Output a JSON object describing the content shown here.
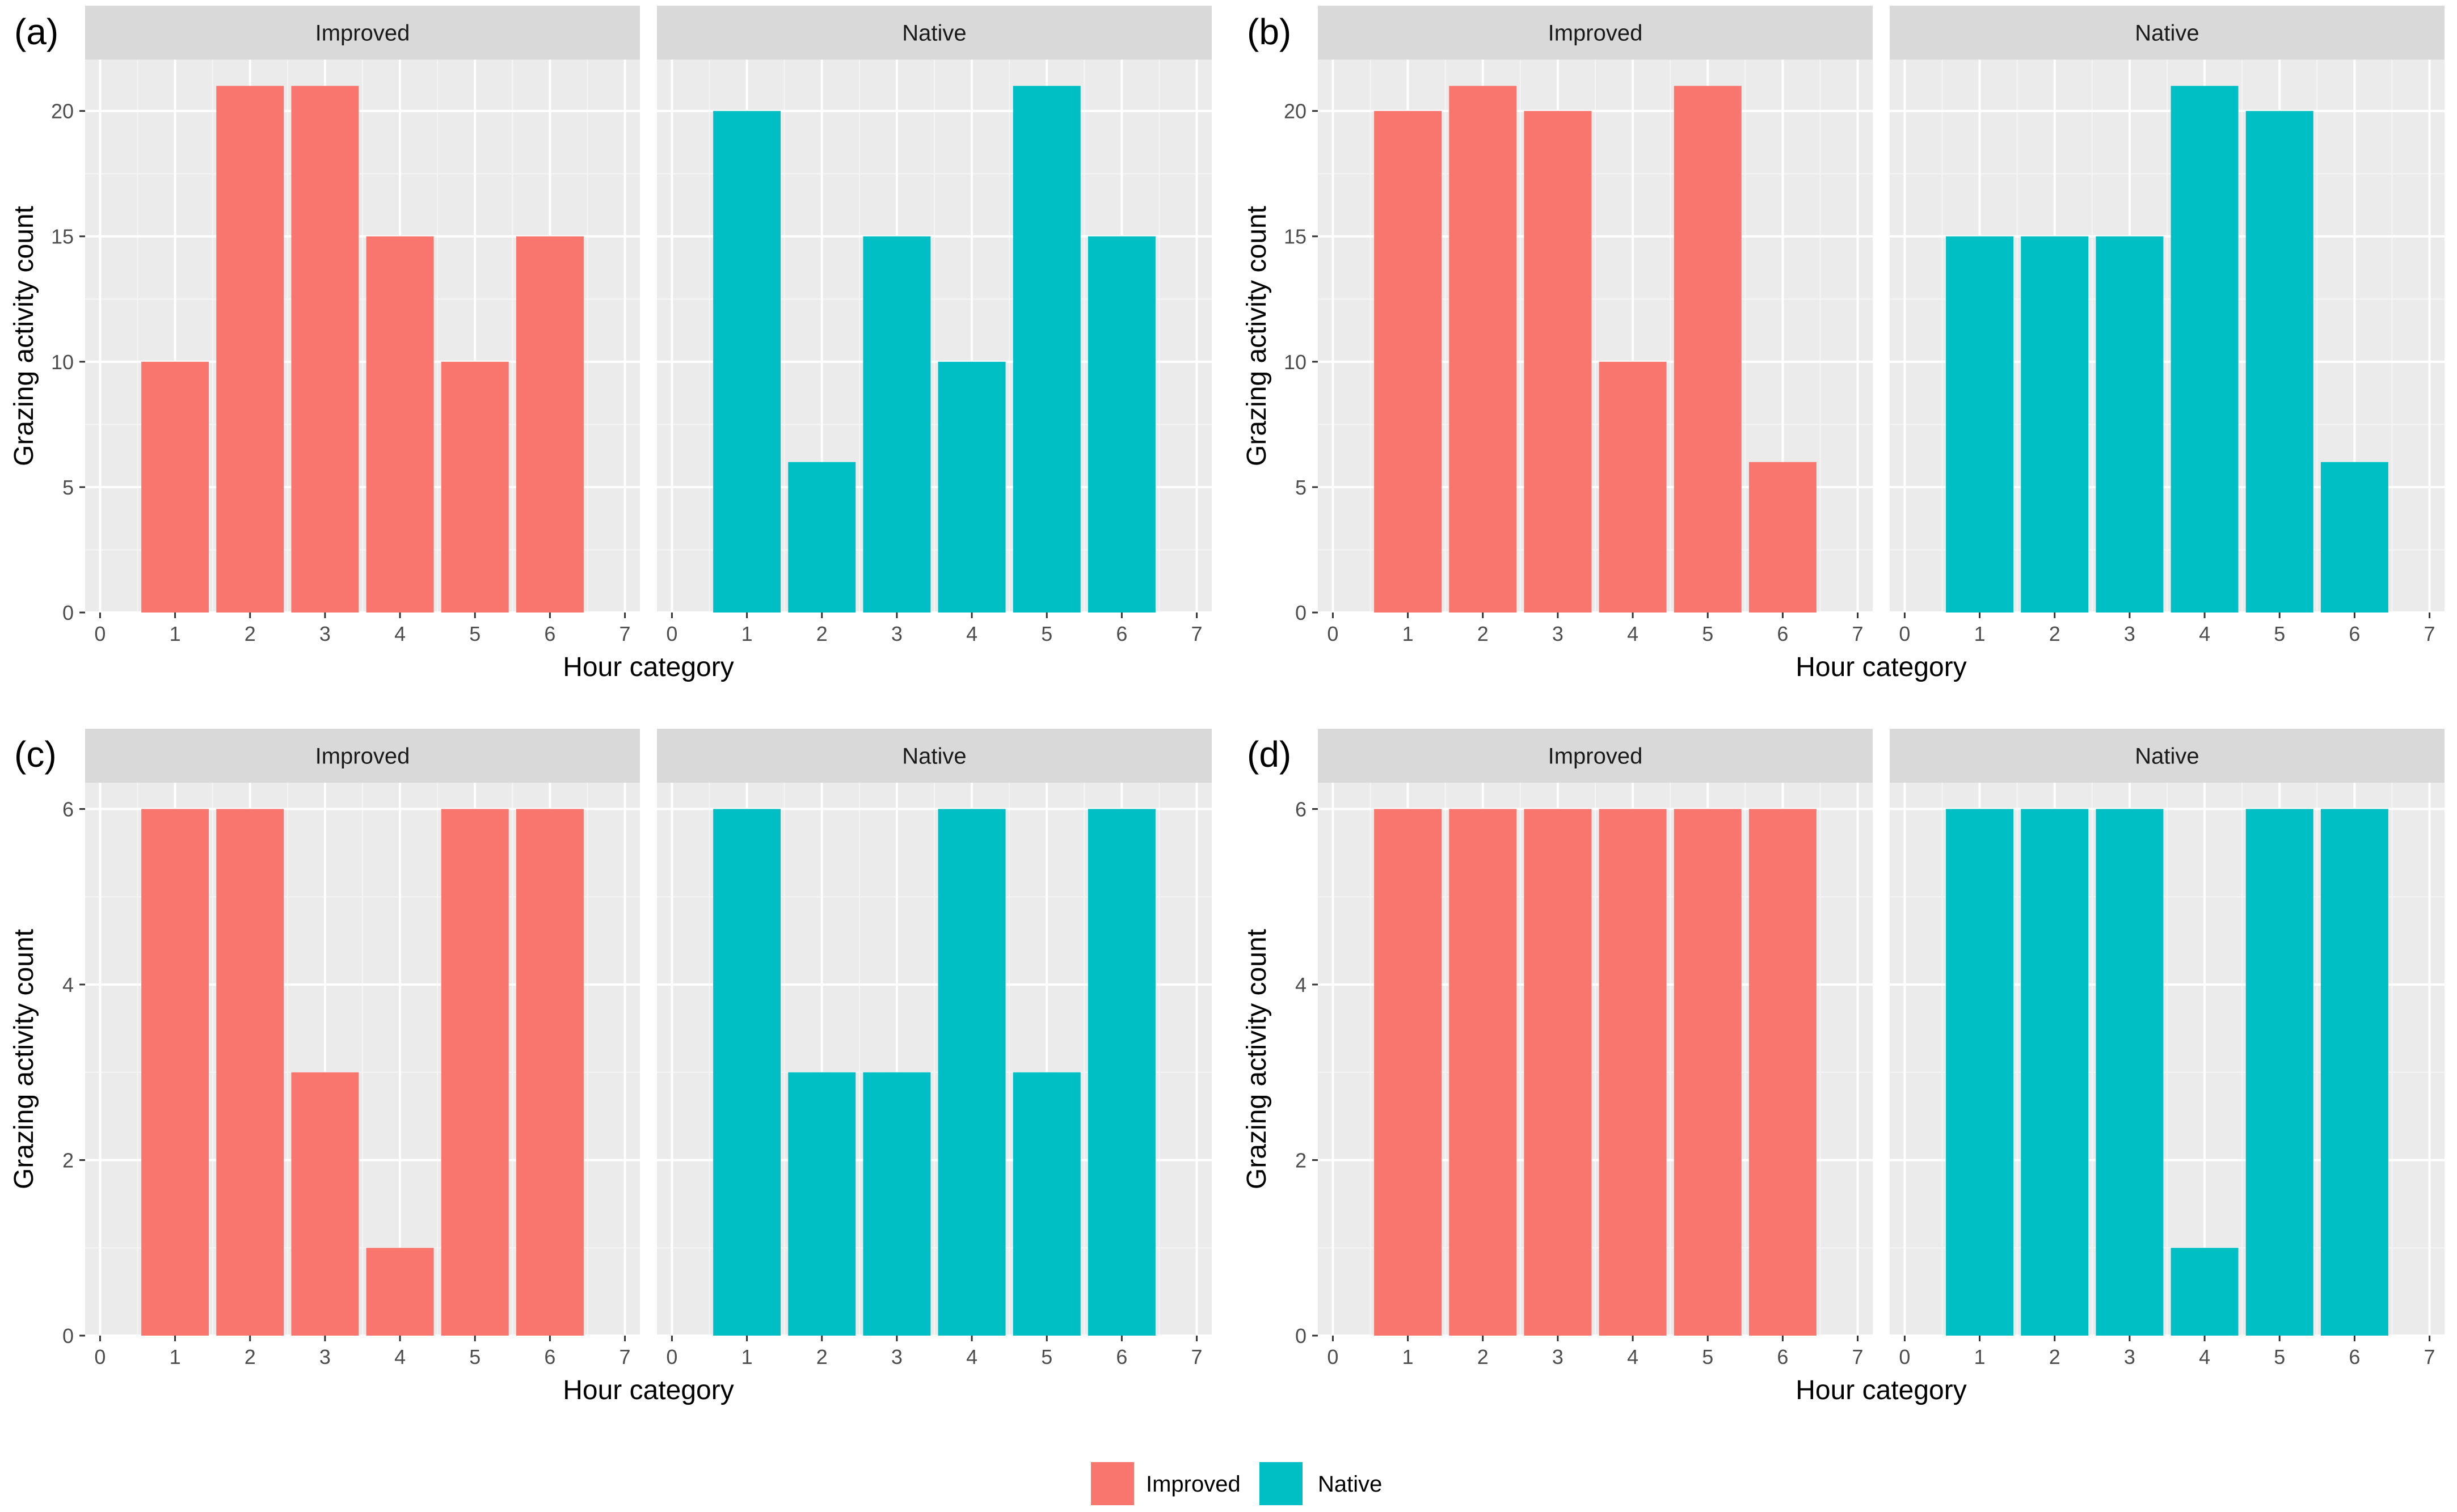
{
  "colors": {
    "Improved": "#F8766D",
    "Native": "#00BFC4",
    "panel_background": "#EBEBEB",
    "strip_background": "#D9D9D9",
    "grid_major": "#FFFFFF",
    "grid_minor": "#F5F5F5"
  },
  "legend": {
    "entries": [
      {
        "label": "Improved",
        "color": "#F8766D"
      },
      {
        "label": "Native",
        "color": "#00BFC4"
      }
    ]
  },
  "chart_data": [
    {
      "type": "bar",
      "label": "(a)",
      "xlabel": "Hour category",
      "ylabel": "Grazing activity count",
      "xlim": [
        -0.2,
        7.2
      ],
      "ylim": [
        0,
        21
      ],
      "x_ticks": [
        "0",
        "1",
        "2",
        "3",
        "4",
        "5",
        "6",
        "7"
      ],
      "y_ticks": [
        0,
        5,
        10,
        15,
        20
      ],
      "categories": [
        1,
        2,
        3,
        4,
        5,
        6
      ],
      "series": [
        {
          "name": "Improved",
          "values": [
            10,
            21,
            21,
            15,
            10,
            15
          ]
        },
        {
          "name": "Native",
          "values": [
            20,
            6,
            15,
            10,
            21,
            15
          ]
        }
      ]
    },
    {
      "type": "bar",
      "label": "(b)",
      "xlabel": "Hour category",
      "ylabel": "Grazing activity count",
      "xlim": [
        -0.2,
        7.2
      ],
      "ylim": [
        0,
        21
      ],
      "x_ticks": [
        "0",
        "1",
        "2",
        "3",
        "4",
        "5",
        "6",
        "7"
      ],
      "y_ticks": [
        0,
        5,
        10,
        15,
        20
      ],
      "categories": [
        1,
        2,
        3,
        4,
        5,
        6
      ],
      "series": [
        {
          "name": "Improved",
          "values": [
            20,
            21,
            20,
            10,
            21,
            6
          ]
        },
        {
          "name": "Native",
          "values": [
            15,
            15,
            15,
            21,
            20,
            6
          ]
        }
      ]
    },
    {
      "type": "bar",
      "label": "(c)",
      "xlabel": "Hour category",
      "ylabel": "Grazing activity count",
      "xlim": [
        -0.2,
        7.2
      ],
      "ylim": [
        0,
        6
      ],
      "x_ticks": [
        "0",
        "1",
        "2",
        "3",
        "4",
        "5",
        "6",
        "7"
      ],
      "y_ticks": [
        0,
        2,
        4,
        6
      ],
      "categories": [
        1,
        2,
        3,
        4,
        5,
        6
      ],
      "series": [
        {
          "name": "Improved",
          "values": [
            6,
            6,
            3,
            1,
            6,
            6
          ]
        },
        {
          "name": "Native",
          "values": [
            6,
            3,
            3,
            6,
            3,
            6
          ]
        }
      ]
    },
    {
      "type": "bar",
      "label": "(d)",
      "xlabel": "Hour category",
      "ylabel": "Grazing activity count",
      "xlim": [
        -0.2,
        7.2
      ],
      "ylim": [
        0,
        6
      ],
      "x_ticks": [
        "0",
        "1",
        "2",
        "3",
        "4",
        "5",
        "6",
        "7"
      ],
      "y_ticks": [
        0,
        2,
        4,
        6
      ],
      "categories": [
        1,
        2,
        3,
        4,
        5,
        6
      ],
      "series": [
        {
          "name": "Improved",
          "values": [
            6,
            6,
            6,
            6,
            6,
            6
          ]
        },
        {
          "name": "Native",
          "values": [
            6,
            6,
            6,
            1,
            6,
            6
          ]
        }
      ]
    }
  ]
}
